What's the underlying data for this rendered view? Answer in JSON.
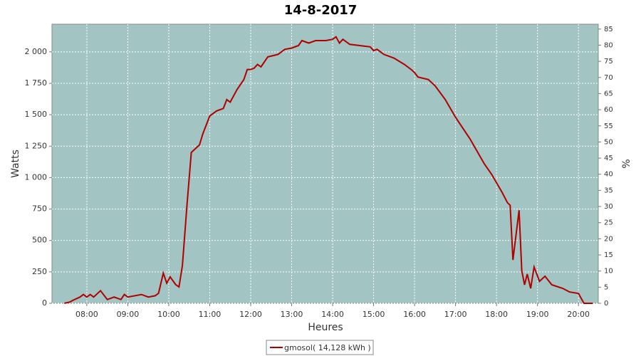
{
  "chart_data": {
    "type": "line",
    "title": "14-8-2017",
    "x_label": "Heures",
    "y_label": "Watts",
    "y2_label": "%",
    "xlim": [
      429,
      1229
    ],
    "xticks": [
      {
        "value": 480,
        "label": "08:00"
      },
      {
        "value": 540,
        "label": "09:00"
      },
      {
        "value": 600,
        "label": "10:00"
      },
      {
        "value": 660,
        "label": "11:00"
      },
      {
        "value": 720,
        "label": "12:00"
      },
      {
        "value": 780,
        "label": "13:00"
      },
      {
        "value": 840,
        "label": "14:00"
      },
      {
        "value": 900,
        "label": "15:00"
      },
      {
        "value": 960,
        "label": "16:00"
      },
      {
        "value": 1020,
        "label": "17:00"
      },
      {
        "value": 1080,
        "label": "18:00"
      },
      {
        "value": 1140,
        "label": "19:00"
      },
      {
        "value": 1200,
        "label": "20:00"
      }
    ],
    "ylim": [
      0,
      2220
    ],
    "yticks": [
      0,
      250,
      500,
      750,
      {
        "value": 1000,
        "label": "1 000"
      },
      {
        "value": 1250,
        "label": "1 250"
      },
      {
        "value": 1500,
        "label": "1 500"
      },
      {
        "value": 1750,
        "label": "1 750"
      },
      {
        "value": 2000,
        "label": "2 000"
      }
    ],
    "y2lim": [
      0,
      86.5
    ],
    "y2ticks": [
      0,
      5,
      10,
      15,
      20,
      25,
      30,
      35,
      40,
      45,
      50,
      55,
      60,
      65,
      70,
      75,
      80,
      85
    ],
    "grid": true,
    "background": "#a2c4c3",
    "x": [
      447,
      455,
      460,
      470,
      475,
      480,
      485,
      490,
      500,
      510,
      520,
      530,
      535,
      540,
      560,
      570,
      580,
      585,
      592,
      597,
      602,
      610,
      615,
      620,
      627,
      633,
      645,
      650,
      660,
      670,
      680,
      685,
      690,
      700,
      710,
      715,
      720,
      725,
      730,
      735,
      745,
      760,
      770,
      780,
      790,
      795,
      805,
      815,
      830,
      840,
      845,
      850,
      855,
      865,
      880,
      895,
      900,
      905,
      915,
      930,
      945,
      955,
      960,
      965,
      980,
      990,
      1005,
      1020,
      1041,
      1062,
      1073,
      1088,
      1096,
      1100,
      1104,
      1113,
      1117,
      1121,
      1125,
      1130,
      1135,
      1143,
      1151,
      1161,
      1177,
      1187,
      1200,
      1208,
      1221
    ],
    "series": [
      {
        "name": "gmosol( 14,128 kWh )",
        "color": "#b00000",
        "values": [
          0,
          10,
          25,
          50,
          70,
          50,
          70,
          50,
          100,
          30,
          50,
          30,
          70,
          50,
          70,
          50,
          60,
          80,
          240,
          160,
          210,
          150,
          130,
          300,
          800,
          1200,
          1260,
          1350,
          1490,
          1530,
          1550,
          1620,
          1600,
          1700,
          1780,
          1860,
          1860,
          1870,
          1900,
          1880,
          1960,
          1980,
          2020,
          2030,
          2050,
          2090,
          2070,
          2090,
          2090,
          2100,
          2120,
          2070,
          2100,
          2060,
          2050,
          2040,
          2010,
          2020,
          1980,
          1950,
          1900,
          1860,
          1835,
          1800,
          1780,
          1730,
          1620,
          1480,
          1309,
          1110,
          1025,
          884,
          800,
          780,
          345,
          740,
          260,
          147,
          232,
          119,
          289,
          175,
          215,
          147,
          119,
          90,
          79,
          0,
          0
        ]
      }
    ]
  }
}
